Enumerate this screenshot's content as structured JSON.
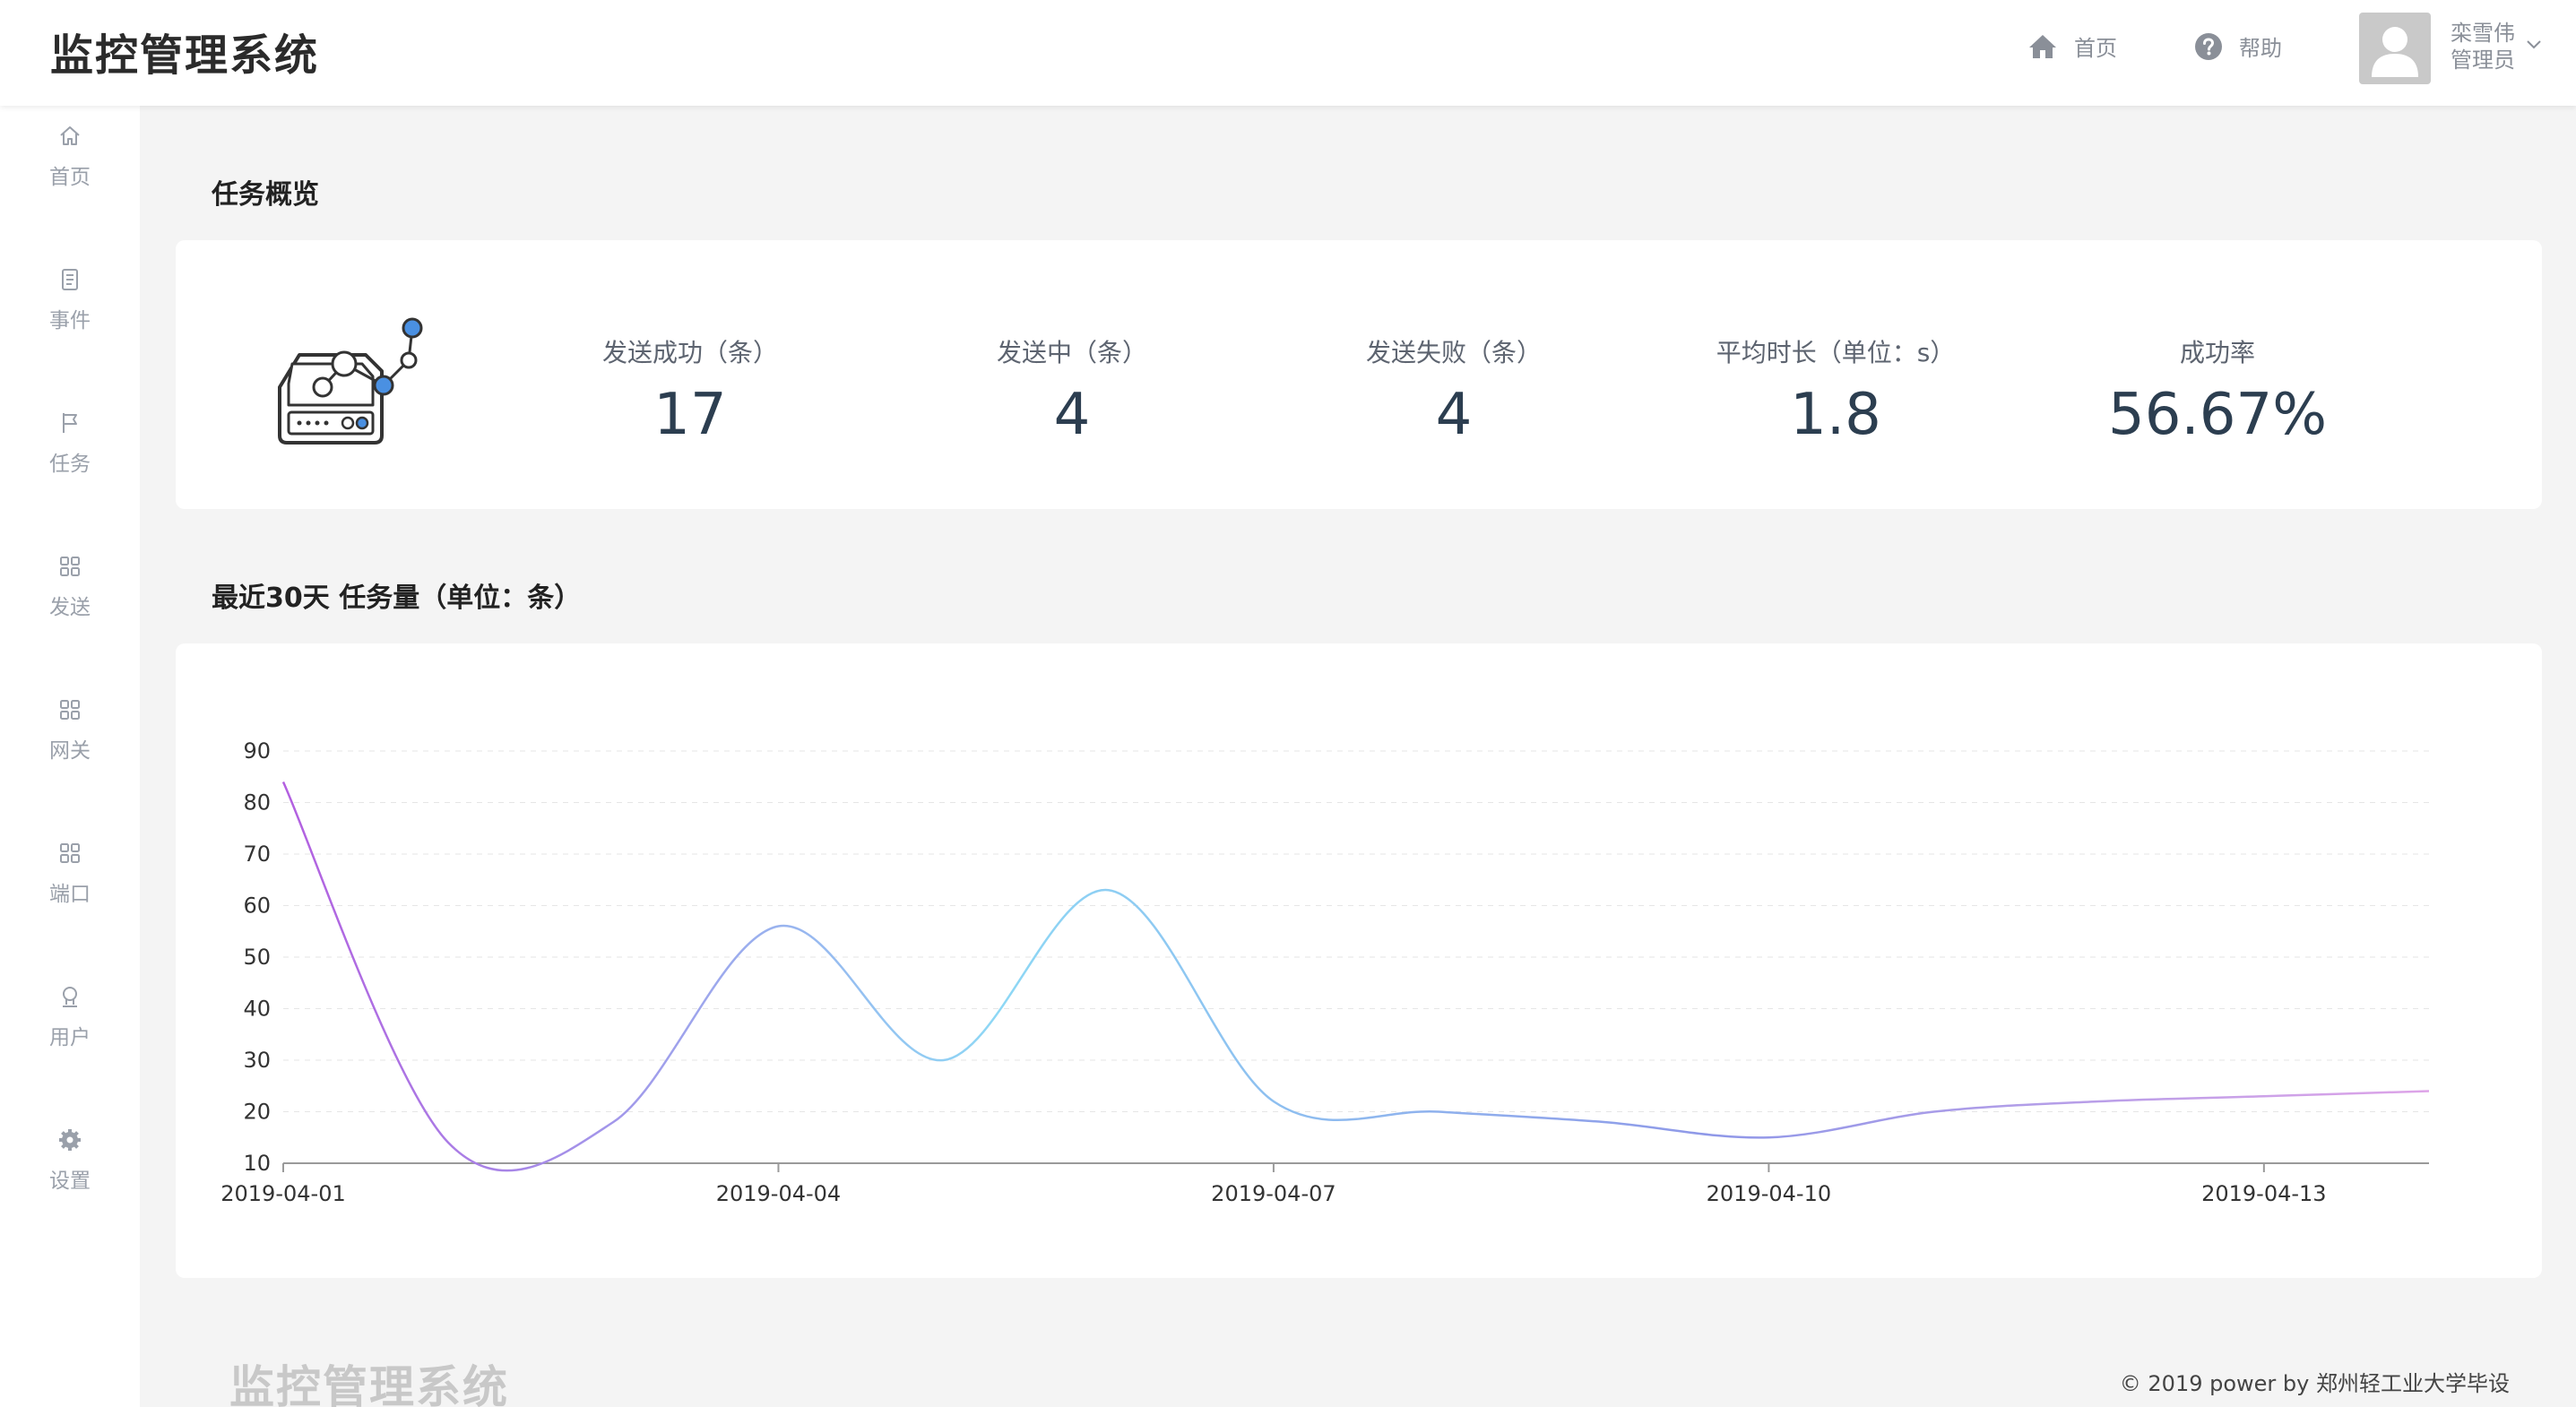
{
  "header": {
    "title": "监控管理系统",
    "home_label": "首页",
    "help_label": "帮助",
    "user_name": "栾雪伟",
    "user_role": "管理员"
  },
  "sidebar": {
    "items": [
      {
        "label": "首页",
        "icon": "home-icon"
      },
      {
        "label": "事件",
        "icon": "document-icon"
      },
      {
        "label": "任务",
        "icon": "flag-icon"
      },
      {
        "label": "发送",
        "icon": "grid-icon"
      },
      {
        "label": "网关",
        "icon": "grid-icon"
      },
      {
        "label": "端口",
        "icon": "grid-icon"
      },
      {
        "label": "用户",
        "icon": "user-icon"
      },
      {
        "label": "设置",
        "icon": "gear-icon"
      }
    ]
  },
  "overview": {
    "title": "任务概览",
    "stats": [
      {
        "label": "发送成功（条）",
        "value": "17"
      },
      {
        "label": "发送中（条）",
        "value": "4"
      },
      {
        "label": "发送失败（条）",
        "value": "4"
      },
      {
        "label": "平均时长（单位：s）",
        "value": "1.8"
      },
      {
        "label": "成功率",
        "value": "56.67%"
      }
    ]
  },
  "chart_section": {
    "title": "最近30天 任务量（单位：条）"
  },
  "chart_data": {
    "type": "line",
    "x": [
      "2019-04-01",
      "2019-04-02",
      "2019-04-03",
      "2019-04-04",
      "2019-04-05",
      "2019-04-06",
      "2019-04-07",
      "2019-04-08",
      "2019-04-09",
      "2019-04-10",
      "2019-04-11",
      "2019-04-12",
      "2019-04-13",
      "2019-04-14"
    ],
    "values": [
      84,
      14,
      18,
      56,
      30,
      63,
      22,
      20,
      18,
      15,
      20,
      22,
      23,
      24
    ],
    "xticks": [
      "2019-04-01",
      "2019-04-04",
      "2019-04-07",
      "2019-04-10",
      "2019-04-13"
    ],
    "yticks": [
      10,
      20,
      30,
      40,
      50,
      60,
      70,
      80,
      90
    ],
    "ylim": [
      10,
      90
    ],
    "grid": true,
    "line_colors": [
      "#b35fe0",
      "#8ed8f5",
      "#8f98e8",
      "#dea4e8"
    ]
  },
  "footer": {
    "brand": "监控管理系统",
    "copyright": "© 2019 power by 郑州轻工业大学毕设"
  }
}
